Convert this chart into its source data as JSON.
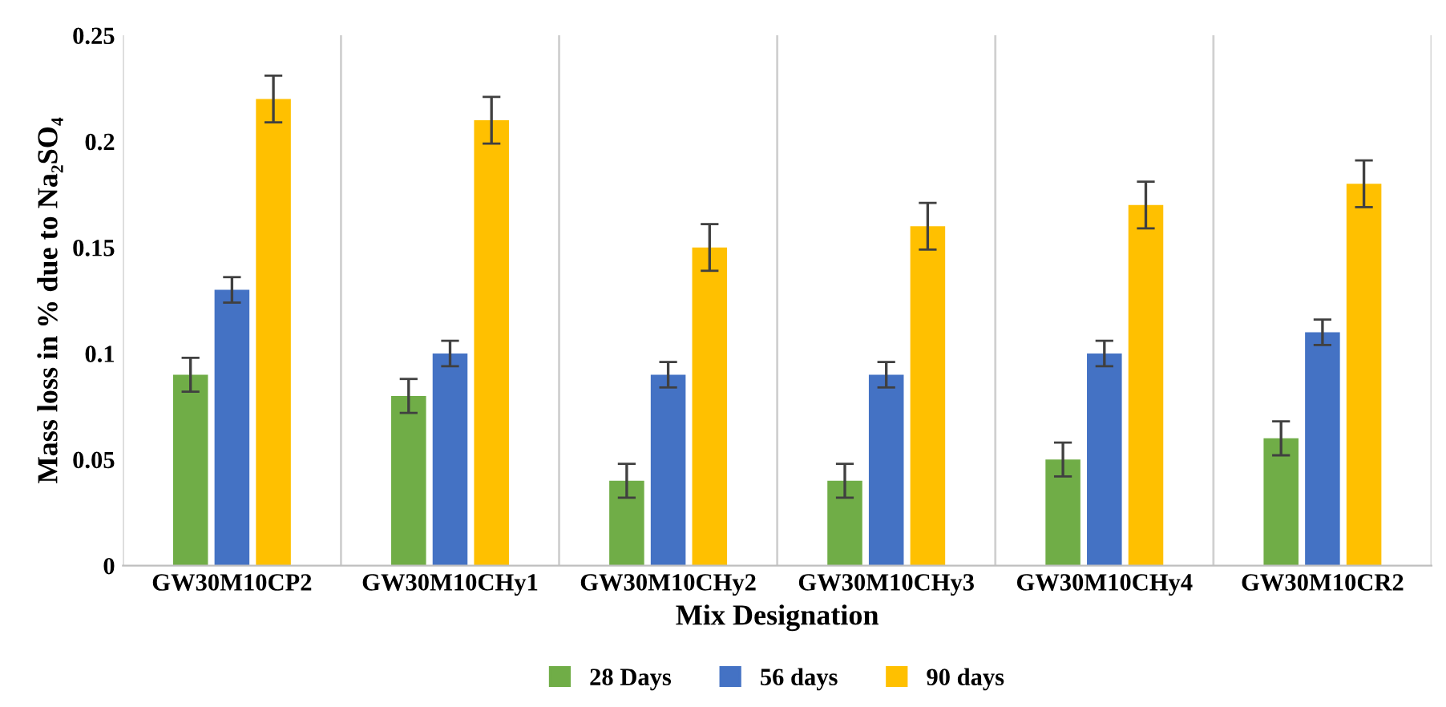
{
  "chart_data": {
    "type": "bar",
    "xlabel": "Mix Designation",
    "ylabel": "Mass loss in % due to Na₂SO₄",
    "categories": [
      "GW30M10CP2",
      "GW30M10CHy1",
      "GW30M10CHy2",
      "GW30M10CHy3",
      "GW30M10CHy4",
      "GW30M10CR2"
    ],
    "series": [
      {
        "name": "28 Days",
        "color": "#70ad47",
        "values": [
          0.09,
          0.08,
          0.04,
          0.04,
          0.05,
          0.06
        ],
        "errors": [
          0.008,
          0.008,
          0.008,
          0.008,
          0.008,
          0.008
        ]
      },
      {
        "name": "56 days",
        "color": "#4472c4",
        "values": [
          0.13,
          0.1,
          0.09,
          0.09,
          0.1,
          0.11
        ],
        "errors": [
          0.006,
          0.006,
          0.006,
          0.006,
          0.006,
          0.006
        ]
      },
      {
        "name": "90 days",
        "color": "#ffc000",
        "values": [
          0.22,
          0.21,
          0.15,
          0.16,
          0.17,
          0.18
        ],
        "errors": [
          0.011,
          0.011,
          0.011,
          0.011,
          0.011,
          0.011
        ]
      }
    ],
    "ylim": [
      0,
      0.25
    ],
    "yticks": [
      0,
      0.05,
      0.1,
      0.15,
      0.2,
      0.25
    ],
    "grid": "x",
    "legend": "bottom"
  }
}
